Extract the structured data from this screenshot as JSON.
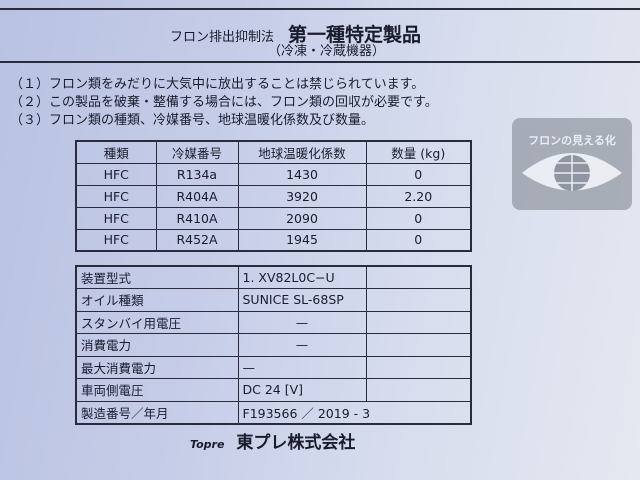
{
  "header": {
    "law": "フロン排出抑制法",
    "category": "第一種特定製品",
    "subtitle": "（冷凍・冷蔵機器）"
  },
  "notes": [
    "（１）フロン類をみだりに大気中に放出することは禁じられています。",
    "（２）この製品を破棄・整備する場合には、フロン類の回収が必要です。",
    "（３）フロン類の種類、冷媒番号、地球温暖化係数及び数量。"
  ],
  "refrigerant_table": {
    "headers": [
      "種類",
      "冷媒番号",
      "地球温暖化係数",
      "数量 (kg)"
    ],
    "rows": [
      [
        "HFC",
        "R134a",
        "1430",
        "0"
      ],
      [
        "HFC",
        "R404A",
        "3920",
        "2.20"
      ],
      [
        "HFC",
        "R410A",
        "2090",
        "0"
      ],
      [
        "HFC",
        "R452A",
        "1945",
        "0"
      ]
    ]
  },
  "spec_table": {
    "rows": [
      [
        "装置型式",
        "1.  XV82L0C−U"
      ],
      [
        "オイル種類",
        "SUNICE SL-68SP"
      ],
      [
        "スタンバイ用電圧",
        "—"
      ],
      [
        "消費電力",
        "—"
      ],
      [
        "最大消費電力",
        "—"
      ],
      [
        "車両側電圧",
        "DC   24   [V]"
      ],
      [
        "製造番号／年月",
        "F193566    ／    2019 - 3"
      ]
    ]
  },
  "footer": {
    "brand": "Topre",
    "company": "東プレ株式会社"
  },
  "logo": {
    "text": "フロンの見える化",
    "icon": "eye-globe-icon"
  }
}
